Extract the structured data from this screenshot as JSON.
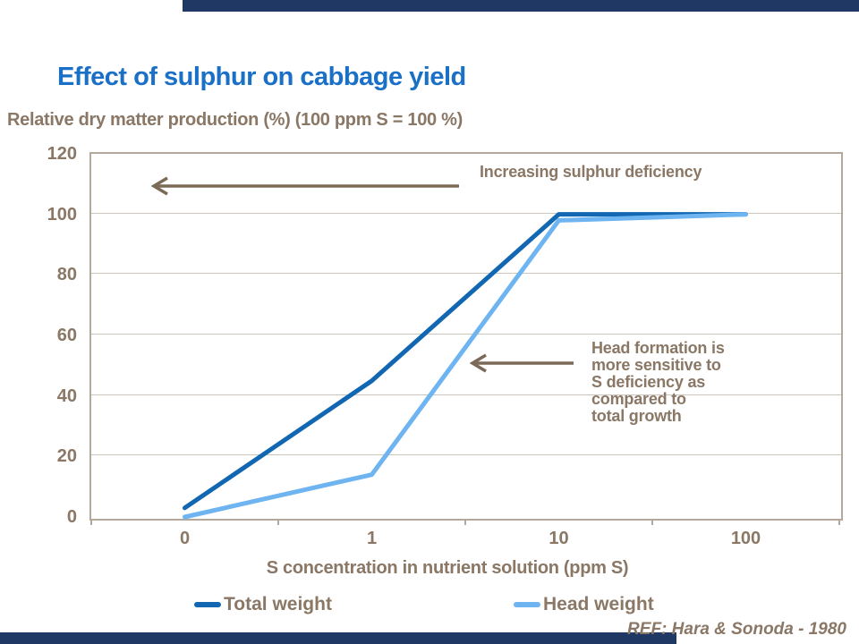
{
  "title": {
    "text": "Effect of sulphur on cabbage yield"
  },
  "subtitle": {
    "text": "Relative dry matter production (%) (100 ppm S = 100 %)"
  },
  "chart_data": {
    "type": "line",
    "categories": [
      "0",
      "1",
      "10",
      "100"
    ],
    "series": [
      {
        "name": "Total weight",
        "color": "#1167b1",
        "values": [
          3,
          45,
          100,
          100
        ]
      },
      {
        "name": "Head weight",
        "color": "#6db4f1",
        "values": [
          0,
          14,
          98,
          100
        ]
      }
    ],
    "xlabel": "S concentration in nutrient solution (ppm S)",
    "ylabel": "Relative dry matter production (%)",
    "y_ticks": [
      0,
      20,
      40,
      60,
      80,
      100,
      120
    ],
    "ylim": [
      0,
      120
    ],
    "grid": true,
    "legend_position": "bottom",
    "x_axis_type": "category"
  },
  "annotations": {
    "deficiency": {
      "text": "Increasing sulphur deficiency"
    },
    "head_formation": {
      "lines": [
        "Head formation is",
        "more sensitive to",
        "S deficiency as",
        "compared to",
        "total growth"
      ]
    }
  },
  "reference": {
    "text": "REF: Hara & Sonoda - 1980"
  },
  "colors": {
    "accent_bar": "#1f3864",
    "title_blue": "#1a6fc7",
    "text_brown": "#8a7765",
    "arrow_brown": "#7a6a57",
    "gridline": "#ccc5bc",
    "plot_border": "#b3a89b",
    "total_line": "#1167b1",
    "head_line": "#6db4f1"
  }
}
